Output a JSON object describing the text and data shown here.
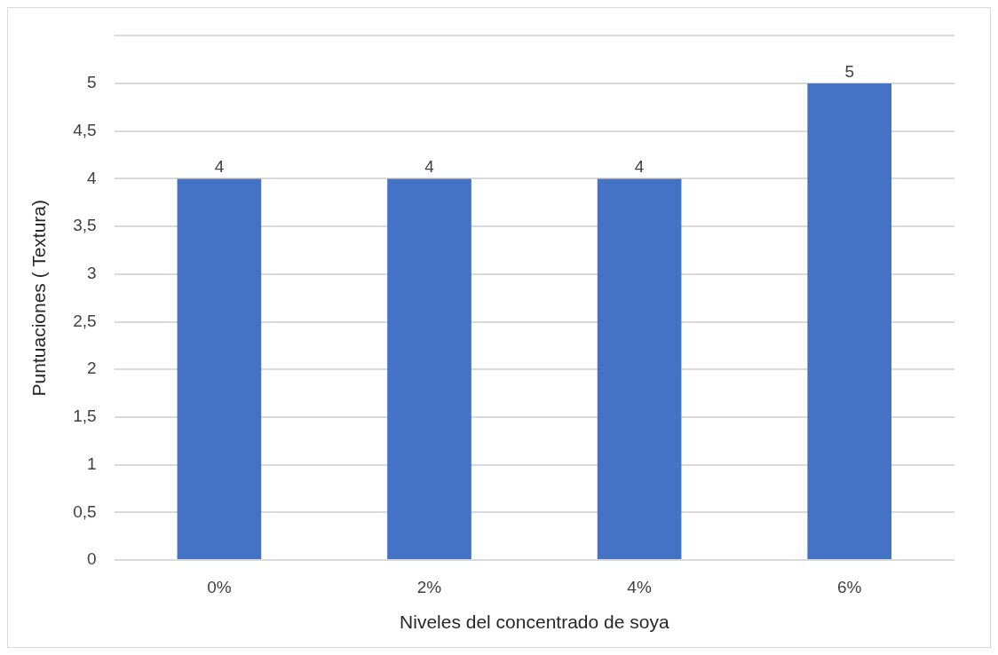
{
  "chart_data": {
    "type": "bar",
    "xlabel": "Niveles del concentrado de soya",
    "ylabel": "Puntuaciones ( Textura)",
    "categories": [
      "0%",
      "2%",
      "4%",
      "6%"
    ],
    "values": [
      4,
      4,
      4,
      5
    ],
    "color": "#4472c4",
    "ylim": [
      0,
      5.5
    ],
    "yticks": [
      0,
      {
        "value": 0.5,
        "label": "0,5"
      },
      1,
      {
        "value": 1.5,
        "label": "1,5"
      },
      2,
      {
        "value": 2.5,
        "label": "2,5"
      },
      3,
      {
        "value": 3.5,
        "label": "3,5"
      },
      4,
      {
        "value": 4.5,
        "label": "4,5"
      },
      5,
      {
        "value": 5.5,
        "label": null
      }
    ],
    "grid": "y",
    "legend": false,
    "data_labels": true
  }
}
